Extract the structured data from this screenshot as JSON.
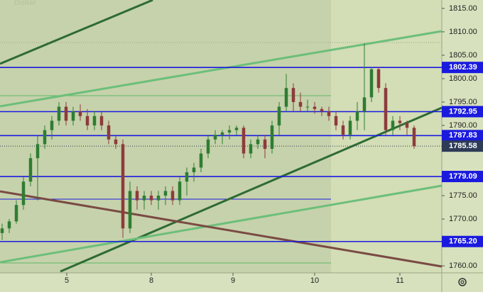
{
  "chart_data": {
    "type": "candlestick",
    "title": "Dollar",
    "up_color": "#2e7d32",
    "down_color": "#8d3b3b",
    "open": [
      1767,
      1768,
      1769.5,
      1773,
      1778,
      1783,
      1786,
      1789,
      1791,
      1794,
      1791,
      1793,
      1792,
      1790,
      1792,
      1790,
      1787,
      1786,
      1768,
      1776,
      1774,
      1775,
      1774,
      1775,
      1776,
      1774,
      1778,
      1780,
      1781,
      1784,
      1787,
      1788,
      1788.5,
      1789,
      1789.5,
      1784,
      1786,
      1787,
      1785,
      1790,
      1794,
      1798,
      1795,
      1794,
      1794,
      1793.5,
      1793,
      1792,
      1790,
      1788,
      1791,
      1793,
      1796,
      1802,
      1798,
      1789,
      1791,
      1790.5,
      1789.5
    ],
    "high": [
      1769,
      1770,
      1774,
      1779,
      1784,
      1788,
      1790,
      1792,
      1795,
      1795,
      1794,
      1794.5,
      1793.5,
      1793,
      1793,
      1791,
      1788,
      1787,
      1778,
      1777,
      1776,
      1776,
      1776,
      1777,
      1777,
      1779,
      1781,
      1782,
      1785,
      1788,
      1789,
      1789,
      1790,
      1790,
      1790,
      1787,
      1788,
      1788,
      1791,
      1795,
      1801,
      1799,
      1797,
      1795.5,
      1795,
      1794,
      1794,
      1793,
      1791,
      1792,
      1795,
      1807.5,
      1802.5,
      1802.5,
      1799,
      1792,
      1792,
      1791,
      1790
    ],
    "low": [
      1765.5,
      1767,
      1769,
      1772,
      1777,
      1774,
      1785,
      1787,
      1790,
      1790,
      1790,
      1791,
      1789,
      1789,
      1789,
      1786,
      1785,
      1766,
      1767,
      1772,
      1772,
      1773,
      1772,
      1773,
      1773,
      1773,
      1775,
      1778,
      1780,
      1783,
      1786,
      1786,
      1787,
      1788,
      1783,
      1783,
      1785,
      1783,
      1784,
      1788,
      1793,
      1793,
      1793,
      1793,
      1792.5,
      1792,
      1791,
      1789,
      1787,
      1787,
      1789,
      1789,
      1795,
      1797,
      1788,
      1788,
      1789,
      1788,
      1785
    ],
    "close": [
      1768,
      1769.5,
      1773,
      1778,
      1783,
      1786,
      1789,
      1791,
      1794,
      1791,
      1793,
      1792,
      1790,
      1792,
      1790,
      1787,
      1786,
      1768,
      1776,
      1774,
      1775,
      1774,
      1775,
      1776,
      1774,
      1778,
      1780,
      1781,
      1784,
      1787,
      1788,
      1788.5,
      1789,
      1789.5,
      1784,
      1786,
      1787,
      1785,
      1790,
      1794,
      1798,
      1795,
      1794,
      1794,
      1793.5,
      1793,
      1792,
      1790,
      1788,
      1791,
      1793,
      1796,
      1802,
      1798,
      1789,
      1791,
      1790.5,
      1789.5,
      1785.58
    ],
    "xlim": [
      -0.3,
      61.9
    ],
    "xticks": [
      {
        "value": 9.1,
        "label": "5"
      },
      {
        "value": 21,
        "label": "8"
      },
      {
        "value": 32.5,
        "label": "9"
      },
      {
        "value": 44,
        "label": "10"
      },
      {
        "value": 56,
        "label": "11"
      }
    ],
    "ylim": [
      1758.5,
      1816.8
    ],
    "yticks": [
      {
        "value": 1815,
        "label": "1815.00"
      },
      {
        "value": 1810,
        "label": "1810.00"
      },
      {
        "value": 1805,
        "label": "1805.00"
      },
      {
        "value": 1800,
        "label": "1800.00"
      },
      {
        "value": 1795,
        "label": "1795.00"
      },
      {
        "value": 1790,
        "label": "1790.00"
      },
      {
        "value": 1775,
        "label": "1775.00"
      },
      {
        "value": 1770,
        "label": "1770.00"
      },
      {
        "value": 1760,
        "label": "1760.00"
      }
    ],
    "levels": [
      1802.39,
      1792.95,
      1787.83,
      {
        "value": 1779.09,
        "label": "1779.09"
      },
      {
        "value": 1765.2,
        "label": "1765.20"
      }
    ],
    "level_color": "#1a1adf",
    "last_price": 1785.58
  }
}
